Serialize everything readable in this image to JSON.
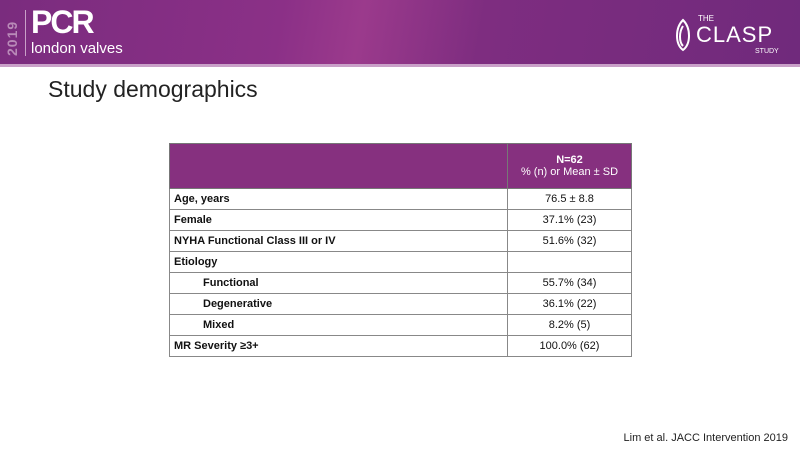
{
  "header": {
    "year": "2019",
    "logo_main": "PCR",
    "logo_sub": "london valves",
    "study_the": "THE",
    "study_name": "CLASP",
    "study_sub": "STUDY"
  },
  "slide": {
    "title": "Study demographics"
  },
  "table": {
    "header": {
      "n": "N=62",
      "unit": "% (n) or Mean ± SD"
    },
    "rows": [
      {
        "label": "Age, years",
        "value": "76.5 ± 8.8",
        "indent": false
      },
      {
        "label": "Female",
        "value": "37.1% (23)",
        "indent": false
      },
      {
        "label": "NYHA Functional  Class III  or IV",
        "value": "51.6% (32)",
        "indent": false
      },
      {
        "label": "Etiology",
        "value": "",
        "indent": false
      },
      {
        "label": "Functional",
        "value": "55.7% (34)",
        "indent": true
      },
      {
        "label": "Degenerative",
        "value": "36.1% (22)",
        "indent": true
      },
      {
        "label": "Mixed",
        "value": "8.2% (5)",
        "indent": true
      },
      {
        "label": "MR Severity ≥3+",
        "value": "100.0% (62)",
        "indent": false
      }
    ]
  },
  "citation": "Lim et al. JACC Intervention 2019",
  "colors": {
    "brand": "#86307f"
  }
}
